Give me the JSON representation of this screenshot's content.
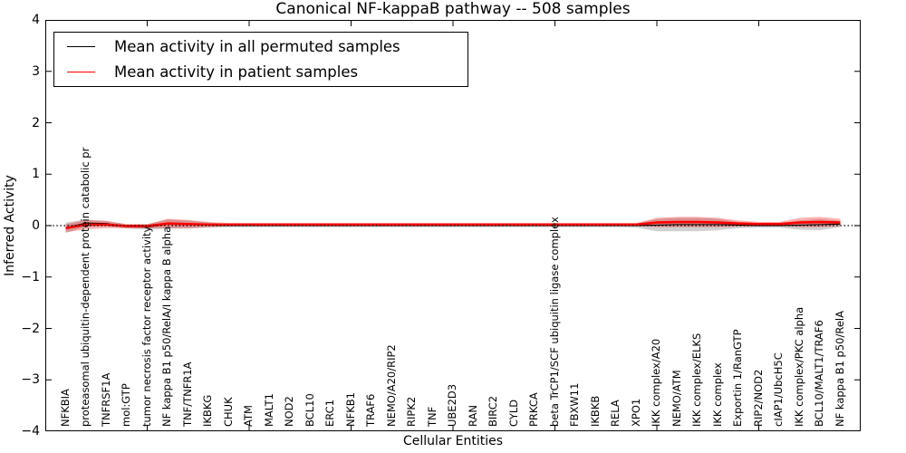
{
  "title": "Canonical NF-kappaB pathway -- 508 samples",
  "legend": {
    "items": [
      {
        "label": "Mean activity in all permuted samples",
        "color": "#000000"
      },
      {
        "label": "Mean activity in patient samples",
        "color": "#ff0000"
      }
    ],
    "position": "upper left"
  },
  "chart_data": {
    "type": "line",
    "title": "Canonical NF-kappaB pathway -- 508 samples",
    "xlabel": "Cellular Entities",
    "ylabel": "Inferred Activity",
    "ylim": [
      -4,
      4
    ],
    "xlim": [
      0,
      40
    ],
    "y_tick_values": [
      4,
      3,
      2,
      1,
      0,
      -1,
      -2,
      -3,
      -4
    ],
    "y_tick_labels": [
      "4",
      "3",
      "2",
      "1",
      "0",
      "−1",
      "−2",
      "−3",
      "−4"
    ],
    "x_axis_unit_ticks": [
      5,
      10,
      15,
      20,
      25,
      30,
      35
    ],
    "zero_line": true,
    "grid": false,
    "categories": [
      "NFKBIA",
      "proteasomal ubiquitin-dependent protein catabolic pr",
      "TNFRSF1A",
      "mol:GTP",
      "tumor necrosis factor receptor activity",
      "NF kappa B1 p50/RelA/I kappa B alpha",
      "TNF/TNFR1A",
      "IKBKG",
      "CHUK",
      "ATM",
      "MALT1",
      "NOD2",
      "BCL10",
      "ERC1",
      "NFKB1",
      "TRAF6",
      "NEMO/A20/RIP2",
      "RIPK2",
      "TNF",
      "UBE2D3",
      "RAN",
      "BIRC2",
      "CYLD",
      "PRKCA",
      "beta TrCP1/SCF ubiquitin ligase complex",
      "FBXW11",
      "IKBKB",
      "RELA",
      "XPO1",
      "IKK complex/A20",
      "NEMO/ATM",
      "IKK complex/ELKS",
      "IKK complex",
      "Exportin 1/RanGTP",
      "RIP2/NOD2",
      "cIAP1/UbcH5C",
      "IKK complex/PKC alpha",
      "BCL10/MALT1/TRAF6",
      "NF kappa B1 p50/RelA"
    ],
    "series": [
      {
        "name": "Mean activity in all permuted samples",
        "color": "#000000",
        "line_width": 1.1,
        "band_color": "rgba(150,150,150,0.45)",
        "values": [
          -0.04,
          0.05,
          0.04,
          -0.02,
          -0.03,
          0.03,
          0.02,
          0.01,
          0,
          0,
          0,
          0,
          0,
          0,
          0,
          0,
          0,
          0,
          0,
          0,
          0,
          0,
          0,
          0,
          0,
          0,
          0,
          0,
          0,
          0.01,
          0.02,
          0.02,
          0.02,
          0.01,
          0,
          0,
          0.01,
          0.02,
          0.03
        ],
        "band": [
          0.1,
          0.07,
          0.05,
          0.04,
          0.05,
          0.09,
          0.08,
          0.05,
          0.03,
          0.03,
          0.03,
          0.03,
          0.03,
          0.03,
          0.03,
          0.03,
          0.03,
          0.03,
          0.03,
          0.03,
          0.03,
          0.03,
          0.03,
          0.03,
          0.03,
          0.03,
          0.03,
          0.03,
          0.04,
          0.12,
          0.13,
          0.13,
          0.11,
          0.06,
          0.04,
          0.04,
          0.09,
          0.11,
          0.06
        ]
      },
      {
        "name": "Mean activity in patient samples",
        "color": "#ff0000",
        "line_width": 2.6,
        "band_color": "rgba(255,0,0,0.30)",
        "values": [
          -0.05,
          0.02,
          0.02,
          -0.01,
          -0.01,
          0.04,
          0.03,
          0.02,
          0.02,
          0.02,
          0.02,
          0.02,
          0.02,
          0.02,
          0.02,
          0.02,
          0.02,
          0.02,
          0.02,
          0.02,
          0.02,
          0.02,
          0.02,
          0.02,
          0.02,
          0.02,
          0.02,
          0.02,
          0.02,
          0.06,
          0.07,
          0.07,
          0.06,
          0.04,
          0.03,
          0.03,
          0.06,
          0.07,
          0.06
        ],
        "band": [
          0.08,
          0.09,
          0.07,
          0.04,
          0.04,
          0.09,
          0.08,
          0.05,
          0.03,
          0.03,
          0.03,
          0.03,
          0.03,
          0.03,
          0.03,
          0.03,
          0.03,
          0.03,
          0.03,
          0.03,
          0.03,
          0.03,
          0.03,
          0.03,
          0.03,
          0.03,
          0.03,
          0.03,
          0.03,
          0.09,
          0.1,
          0.1,
          0.09,
          0.06,
          0.04,
          0.04,
          0.09,
          0.1,
          0.07
        ]
      }
    ]
  }
}
